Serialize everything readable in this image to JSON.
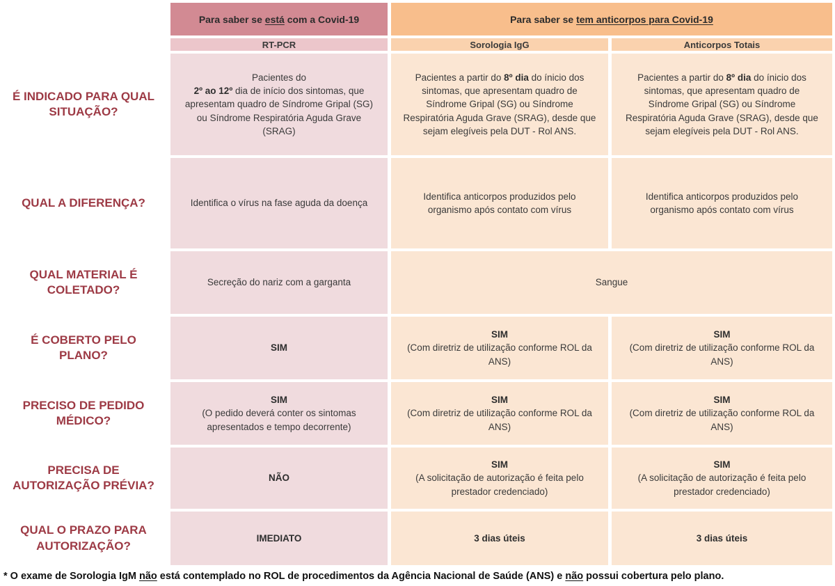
{
  "table": {
    "group_headers": {
      "pcr": {
        "prefix": "Para saber se ",
        "underlined": "está",
        "suffix": " com a Covid-19"
      },
      "antibodies": {
        "prefix": "Para saber se ",
        "underlined": "tem anticorpos para Covid-19",
        "suffix": ""
      }
    },
    "column_headers": {
      "pcr": "RT-PCR",
      "igg": "Sorologia IgG",
      "totais": "Anticorpos Totais"
    },
    "rows": {
      "situacao": {
        "label": "É INDICADO PARA QUAL SITUAÇÃO?",
        "pcr": {
          "line1": "Pacientes do",
          "bold": "2º ao 12º",
          "rest": " dia de início dos sintomas, que apresentam quadro de Síndrome Gripal (SG) ou Síndrome Respiratória Aguda Grave (SRAG)"
        },
        "igg": {
          "pre": "Pacientes a partir do ",
          "bold": "8º dia",
          "rest": " do ínicio dos sintomas, que apresentam quadro de Síndrome Gripal (SG) ou Síndrome Respiratória Aguda Grave (SRAG), desde que sejam elegíveis pela DUT - Rol ANS."
        },
        "totais": {
          "pre": "Pacientes a partir do ",
          "bold": "8º dia",
          "rest": " do ínicio dos sintomas, que apresentam quadro de Síndrome Gripal (SG) ou Síndrome Respiratória Aguda Grave (SRAG), desde que sejam elegíveis pela DUT - Rol ANS."
        }
      },
      "diferenca": {
        "label": "QUAL A DIFERENÇA?",
        "pcr": {
          "text": "Identifica o vírus na fase aguda da doença"
        },
        "igg": {
          "text": "Identifica anticorpos produzidos pelo organismo após contato com vírus"
        },
        "totais": {
          "text": "Identifica anticorpos produzidos pelo organismo após contato com vírus"
        }
      },
      "material": {
        "label": "QUAL MATERIAL É COLETADO?",
        "pcr": {
          "text": "Secreção do nariz com a garganta"
        },
        "sangue": {
          "text": "Sangue"
        }
      },
      "cobertura": {
        "label": "É COBERTO PELO PLANO?",
        "pcr": {
          "main": "SIM"
        },
        "igg": {
          "main": "SIM",
          "note": "(Com diretriz de utilização conforme ROL da ANS)"
        },
        "totais": {
          "main": "SIM",
          "note": "(Com diretriz de utilização conforme ROL da ANS)"
        }
      },
      "pedido": {
        "label": "PRECISO DE PEDIDO MÉDICO?",
        "pcr": {
          "main": "SIM",
          "note": "(O pedido deverá conter os sintomas apresentados e tempo decorrente)"
        },
        "igg": {
          "main": "SIM",
          "note": "(Com diretriz de utilização conforme ROL da ANS)"
        },
        "totais": {
          "main": "SIM",
          "note": "(Com diretriz de utilização conforme ROL da ANS)"
        }
      },
      "autorizacao": {
        "label": "PRECISA DE AUTORIZAÇÃO PRÉVIA?",
        "pcr": {
          "main": "NÃO"
        },
        "igg": {
          "main": "SIM",
          "note": "(A solicitação de autorização é feita pelo prestador credenciado)"
        },
        "totais": {
          "main": "SIM",
          "note": "(A solicitação de autorização é feita pelo prestador credenciado)"
        }
      },
      "prazo": {
        "label": "QUAL O PRAZO PARA AUTORIZAÇÃO?",
        "pcr": {
          "main": "IMEDIATO"
        },
        "igg": {
          "main": "3 dias úteis"
        },
        "totais": {
          "main": "3 dias úteis"
        }
      }
    }
  },
  "footnote": {
    "part1": "* O exame de Sorologia IgM ",
    "underlined1": "não",
    "part2": " está contemplado no ROL de procedimentos da Agência Nacional de Saúde (ANS) e ",
    "underlined2": "não",
    "part3": " possui cobertura pelo plano."
  },
  "colors": {
    "header_pink": "#D28A93",
    "header_orange": "#F8BE8C",
    "subheader_pink": "#ECC6CB",
    "subheader_orange": "#FAD2AE",
    "cell_pink": "#F0DBDE",
    "cell_orange": "#FBE6D3",
    "label_maroon": "#9D3A45"
  }
}
